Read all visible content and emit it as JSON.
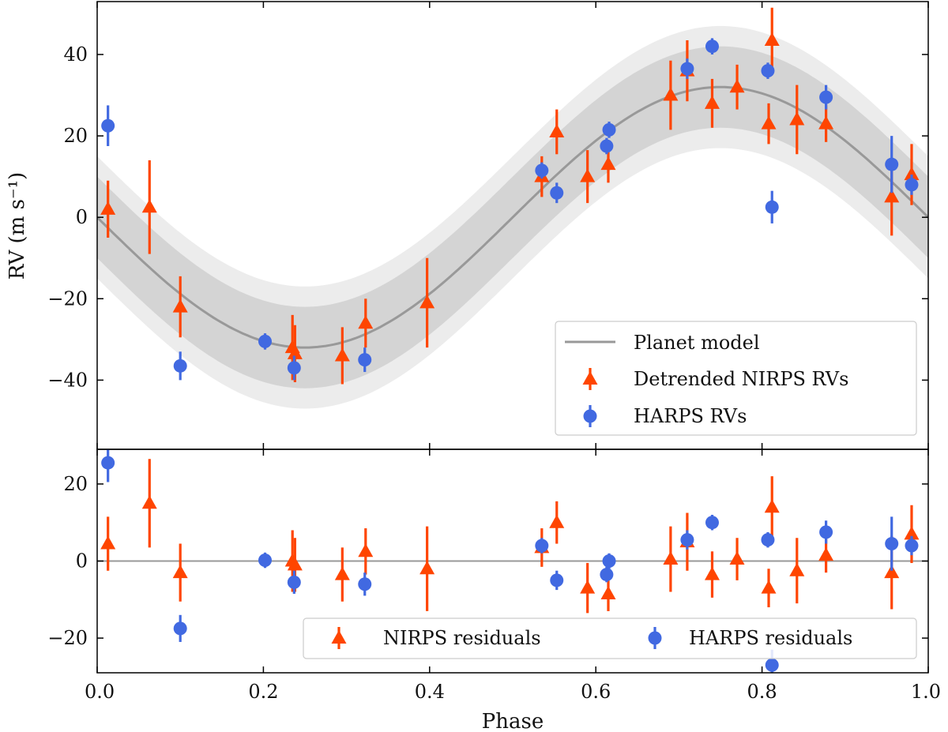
{
  "chart_data": [
    {
      "type": "scatter",
      "panel": "top",
      "xlabel": "",
      "ylabel": "RV (m s⁻¹)",
      "xlim": [
        0.0,
        1.0
      ],
      "ylim": [
        -57,
        53
      ],
      "yticks": [
        40,
        20,
        0,
        -20,
        -40
      ],
      "grid": false,
      "legend_position": "lower-right",
      "model": {
        "name": "Planet model",
        "function": "sine",
        "amplitude": 32,
        "band_inner": 10,
        "band_outer": 15,
        "color": "#999999",
        "band_inner_color": "#d4d4d4",
        "band_outer_color": "#ececec"
      },
      "series": [
        {
          "name": "Detrended NIRPS RVs",
          "marker": "triangle",
          "color": "#ff4500",
          "points": [
            {
              "x": 0.013,
              "y": 2,
              "err": 7
            },
            {
              "x": 0.063,
              "y": 2.5,
              "err": 11.5
            },
            {
              "x": 0.1,
              "y": -22,
              "err": 7.5
            },
            {
              "x": 0.235,
              "y": -32,
              "err": 8
            },
            {
              "x": 0.238,
              "y": -33.5,
              "err": 7
            },
            {
              "x": 0.295,
              "y": -34,
              "err": 7
            },
            {
              "x": 0.323,
              "y": -26,
              "err": 6
            },
            {
              "x": 0.397,
              "y": -21,
              "err": 11
            },
            {
              "x": 0.535,
              "y": 10,
              "err": 5
            },
            {
              "x": 0.553,
              "y": 21,
              "err": 5.5
            },
            {
              "x": 0.59,
              "y": 10,
              "err": 6.5
            },
            {
              "x": 0.615,
              "y": 13,
              "err": 4.5
            },
            {
              "x": 0.69,
              "y": 30,
              "err": 8.5
            },
            {
              "x": 0.71,
              "y": 36,
              "err": 7.5
            },
            {
              "x": 0.74,
              "y": 28,
              "err": 6
            },
            {
              "x": 0.77,
              "y": 32,
              "err": 5.5
            },
            {
              "x": 0.808,
              "y": 23,
              "err": 5
            },
            {
              "x": 0.812,
              "y": 43.5,
              "err": 8
            },
            {
              "x": 0.842,
              "y": 24,
              "err": 8.5
            },
            {
              "x": 0.877,
              "y": 23,
              "err": 4.5
            },
            {
              "x": 0.956,
              "y": 5,
              "err": 9.5
            },
            {
              "x": 0.98,
              "y": 10.5,
              "err": 7.5
            }
          ]
        },
        {
          "name": "HARPS RVs",
          "marker": "circle",
          "color": "#4169e1",
          "points": [
            {
              "x": 0.013,
              "y": 22.5,
              "err": 5
            },
            {
              "x": 0.1,
              "y": -36.5,
              "err": 3.5
            },
            {
              "x": 0.202,
              "y": -30.5,
              "err": 2
            },
            {
              "x": 0.237,
              "y": -37,
              "err": 3
            },
            {
              "x": 0.322,
              "y": -35,
              "err": 3
            },
            {
              "x": 0.535,
              "y": 11.5,
              "err": 2
            },
            {
              "x": 0.553,
              "y": 6,
              "err": 2.5
            },
            {
              "x": 0.613,
              "y": 17.5,
              "err": 2
            },
            {
              "x": 0.616,
              "y": 21.5,
              "err": 2
            },
            {
              "x": 0.71,
              "y": 36.5,
              "err": 2.5
            },
            {
              "x": 0.74,
              "y": 42,
              "err": 2
            },
            {
              "x": 0.807,
              "y": 36,
              "err": 2
            },
            {
              "x": 0.812,
              "y": 2.5,
              "err": 4
            },
            {
              "x": 0.877,
              "y": 29.5,
              "err": 3
            },
            {
              "x": 0.956,
              "y": 13,
              "err": 7
            },
            {
              "x": 0.98,
              "y": 8,
              "err": 2.5
            }
          ]
        }
      ]
    },
    {
      "type": "scatter",
      "panel": "bottom",
      "xlabel": "Phase",
      "ylabel": "",
      "xlim": [
        0.0,
        1.0
      ],
      "ylim": [
        -29,
        29
      ],
      "yticks": [
        20,
        0,
        -20
      ],
      "xticks": [
        "0.0",
        "0.2",
        "0.4",
        "0.6",
        "0.8",
        "1.0"
      ],
      "grid": false,
      "legend_position": "lower-right",
      "reference_line": 0,
      "series": [
        {
          "name": "NIRPS residuals",
          "marker": "triangle",
          "color": "#ff4500",
          "points": [
            {
              "x": 0.013,
              "y": 4.5,
              "err": 7
            },
            {
              "x": 0.063,
              "y": 15,
              "err": 11.5
            },
            {
              "x": 0.1,
              "y": -3,
              "err": 7.5
            },
            {
              "x": 0.235,
              "y": 0,
              "err": 8
            },
            {
              "x": 0.238,
              "y": -1,
              "err": 7
            },
            {
              "x": 0.295,
              "y": -3.5,
              "err": 7
            },
            {
              "x": 0.323,
              "y": 2.5,
              "err": 6
            },
            {
              "x": 0.397,
              "y": -2,
              "err": 11
            },
            {
              "x": 0.535,
              "y": 3.5,
              "err": 5
            },
            {
              "x": 0.553,
              "y": 10,
              "err": 5.5
            },
            {
              "x": 0.59,
              "y": -7,
              "err": 6.5
            },
            {
              "x": 0.615,
              "y": -8.5,
              "err": 4.5
            },
            {
              "x": 0.69,
              "y": 0.5,
              "err": 8.5
            },
            {
              "x": 0.71,
              "y": 5,
              "err": 7.5
            },
            {
              "x": 0.74,
              "y": -3.5,
              "err": 6
            },
            {
              "x": 0.77,
              "y": 0.5,
              "err": 5.5
            },
            {
              "x": 0.808,
              "y": -7,
              "err": 5
            },
            {
              "x": 0.812,
              "y": 14,
              "err": 8
            },
            {
              "x": 0.842,
              "y": -2.5,
              "err": 8.5
            },
            {
              "x": 0.877,
              "y": 1.5,
              "err": 4.5
            },
            {
              "x": 0.956,
              "y": -3,
              "err": 9.5
            },
            {
              "x": 0.98,
              "y": 7,
              "err": 7.5
            }
          ]
        },
        {
          "name": "HARPS residuals",
          "marker": "circle",
          "color": "#4169e1",
          "points": [
            {
              "x": 0.013,
              "y": 25.5,
              "err": 5
            },
            {
              "x": 0.1,
              "y": -17.5,
              "err": 3.5
            },
            {
              "x": 0.202,
              "y": 0.2,
              "err": 2
            },
            {
              "x": 0.237,
              "y": -5.5,
              "err": 3
            },
            {
              "x": 0.322,
              "y": -6,
              "err": 3
            },
            {
              "x": 0.535,
              "y": 4,
              "err": 2
            },
            {
              "x": 0.553,
              "y": -5,
              "err": 2.5
            },
            {
              "x": 0.613,
              "y": -3.5,
              "err": 2
            },
            {
              "x": 0.616,
              "y": 0,
              "err": 2
            },
            {
              "x": 0.71,
              "y": 5.5,
              "err": 2.5
            },
            {
              "x": 0.74,
              "y": 10,
              "err": 2
            },
            {
              "x": 0.807,
              "y": 5.5,
              "err": 2
            },
            {
              "x": 0.812,
              "y": -27,
              "err": 4
            },
            {
              "x": 0.877,
              "y": 7.5,
              "err": 3
            },
            {
              "x": 0.956,
              "y": 4.5,
              "err": 7
            },
            {
              "x": 0.98,
              "y": 4,
              "err": 2.5
            }
          ]
        }
      ]
    }
  ]
}
